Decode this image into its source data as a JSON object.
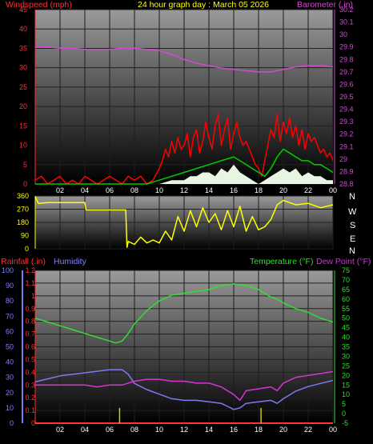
{
  "title": "24 hour graph day : March 05 2026",
  "colors": {
    "wind_speed": "#ff0000",
    "wind_avg": "#00cc00",
    "gust_fill": "#e8f5e0",
    "barometer": "#d24ad2",
    "direction": "#ffff00",
    "rainfall": "#ff3333",
    "humidity": "#7b7bf2",
    "temperature": "#33dd33",
    "dew_point": "#d633d6",
    "rain_bars": "#cccc00"
  },
  "compass": [
    "N",
    "W",
    "S",
    "E",
    "N"
  ],
  "x_ticks": [
    "02",
    "04",
    "06",
    "08",
    "10",
    "12",
    "14",
    "16",
    "18",
    "20",
    "22",
    "00"
  ],
  "chart_data": [
    {
      "id": "wind",
      "type": "line",
      "title_left": "Windspeed (mph)",
      "title_right": "Barometer (.in)",
      "y_left": {
        "lim": [
          0,
          45
        ],
        "ticks": [
          0,
          5,
          10,
          15,
          20,
          25,
          30,
          35,
          40,
          45
        ]
      },
      "y_right": {
        "lim": [
          28.8,
          30.2
        ],
        "ticks": [
          "28.8",
          "28.9",
          "29",
          "29.1",
          "29.2",
          "29.3",
          "29.4",
          "29.5",
          "29.6",
          "29.7",
          "29.8",
          "29.9",
          "30",
          "30.1",
          "30.2"
        ]
      },
      "x_hours_range": [
        0,
        24
      ],
      "series": [
        {
          "key": "barometer",
          "axis": "right",
          "x": [
            0,
            1,
            2,
            3,
            4,
            5,
            6,
            7,
            8,
            9,
            10,
            11,
            12,
            13,
            14,
            15,
            16,
            17,
            18,
            19,
            20,
            21,
            22,
            23,
            24
          ],
          "y": [
            29.9,
            29.9,
            29.89,
            29.89,
            29.88,
            29.88,
            29.88,
            29.89,
            29.89,
            29.88,
            29.87,
            29.84,
            29.8,
            29.77,
            29.75,
            29.73,
            29.72,
            29.71,
            29.7,
            29.7,
            29.72,
            29.74,
            29.75,
            29.75,
            29.74
          ]
        },
        {
          "key": "wind_speed",
          "axis": "left",
          "x": [
            0,
            0.5,
            1,
            1.5,
            2,
            2.5,
            3,
            3.5,
            4,
            4.5,
            5,
            5.5,
            6,
            6.5,
            7,
            7.5,
            8,
            8.5,
            9,
            9.5,
            10,
            10.25,
            10.5,
            10.75,
            11,
            11.25,
            11.5,
            11.75,
            12,
            12.25,
            12.5,
            12.75,
            13,
            13.25,
            13.5,
            13.75,
            14,
            14.25,
            14.5,
            14.75,
            15,
            15.25,
            15.5,
            15.75,
            16,
            16.25,
            16.5,
            16.75,
            17,
            17.25,
            17.5,
            17.75,
            18,
            18.25,
            18.5,
            18.75,
            19,
            19.25,
            19.5,
            19.75,
            20,
            20.25,
            20.5,
            20.75,
            21,
            21.25,
            21.5,
            21.75,
            22,
            22.25,
            22.5,
            22.75,
            23,
            23.25,
            23.5,
            23.75,
            24
          ],
          "y": [
            1,
            2,
            0,
            1,
            2,
            0,
            1,
            0,
            2,
            1,
            0,
            1,
            2,
            1,
            0,
            2,
            1,
            2,
            0,
            1,
            4,
            6,
            9,
            7,
            11,
            8,
            12,
            9,
            10,
            13,
            7,
            12,
            14,
            8,
            11,
            16,
            12,
            9,
            15,
            18,
            10,
            14,
            17,
            9,
            13,
            16,
            12,
            10,
            11,
            9,
            7,
            5,
            4,
            2,
            6,
            10,
            14,
            12,
            18,
            11,
            16,
            13,
            17,
            12,
            15,
            10,
            14,
            9,
            13,
            11,
            12,
            10,
            8,
            9,
            7,
            8,
            6
          ]
        },
        {
          "key": "wind_avg",
          "axis": "left",
          "x": [
            0,
            2,
            4,
            6,
            8,
            9,
            10,
            11,
            12,
            13,
            14,
            15,
            16,
            16.5,
            17,
            18,
            18.5,
            19,
            19.5,
            20,
            20.5,
            21,
            21.5,
            22,
            22.5,
            23,
            23.5,
            24
          ],
          "y": [
            0,
            0,
            0,
            0,
            0,
            0,
            1,
            2,
            3,
            4,
            5,
            6,
            7,
            6,
            5,
            3,
            2,
            4,
            7,
            9,
            8,
            7,
            6,
            6,
            5,
            5,
            4,
            3
          ]
        },
        {
          "key": "wind_gust",
          "axis": "left",
          "x": [
            10,
            11,
            12,
            12.5,
            13,
            13.5,
            14,
            14.5,
            15,
            15.5,
            16,
            16.5,
            17,
            17.5,
            18,
            18.5,
            19,
            19.5,
            20,
            20.5,
            21,
            21.5,
            22,
            22.5,
            23,
            23.5,
            24
          ],
          "y": [
            0,
            1,
            1,
            2,
            2,
            3,
            3,
            2,
            4,
            3,
            5,
            3,
            2,
            1,
            0,
            1,
            2,
            3,
            4,
            3,
            4,
            2,
            3,
            2,
            2,
            1,
            1
          ]
        }
      ]
    },
    {
      "id": "direction",
      "type": "line",
      "y_left": {
        "lim": [
          0,
          360
        ],
        "ticks": [
          0,
          90,
          180,
          270,
          360
        ]
      },
      "series": [
        {
          "key": "direction",
          "x": [
            0,
            0.25,
            1,
            2,
            3,
            4,
            4.1,
            5,
            6,
            7,
            7.3,
            7.4,
            7.5,
            8,
            8.5,
            9,
            9.5,
            10,
            10.5,
            11,
            11.5,
            12,
            12.5,
            13,
            13.5,
            14,
            14.5,
            15,
            15.5,
            16,
            16.5,
            17,
            17.5,
            18,
            18.5,
            19,
            19.5,
            20,
            21,
            22,
            23,
            24
          ],
          "y": [
            355,
            310,
            315,
            315,
            315,
            315,
            265,
            265,
            265,
            265,
            265,
            10,
            50,
            30,
            80,
            40,
            60,
            40,
            120,
            60,
            220,
            120,
            260,
            150,
            280,
            180,
            240,
            130,
            260,
            150,
            290,
            120,
            220,
            130,
            150,
            200,
            300,
            330,
            300,
            310,
            280,
            300
          ]
        }
      ]
    },
    {
      "id": "weather",
      "type": "line",
      "title_left_1": "Rainfall (.in)",
      "title_left_2": "Humidity",
      "title_right_1": "Temperature (°F)",
      "title_right_2": "Dew Point (°F)",
      "y_humidity": {
        "lim": [
          0,
          100
        ],
        "ticks": [
          0,
          10,
          20,
          30,
          40,
          50,
          60,
          70,
          80,
          90,
          100
        ]
      },
      "y_rain": {
        "lim": [
          0,
          1.2
        ],
        "ticks": [
          "0",
          "0.1",
          "0.2",
          "0.3",
          "0.4",
          "0.5",
          "0.6",
          "0.7",
          "0.8",
          "0.9",
          "1",
          "1.1",
          "1.2"
        ]
      },
      "y_temp": {
        "lim": [
          -5,
          75
        ],
        "ticks": [
          -5,
          0,
          5,
          10,
          15,
          20,
          25,
          30,
          35,
          40,
          45,
          50,
          55,
          60,
          65,
          70,
          75
        ]
      },
      "series": [
        {
          "key": "temperature",
          "axis": "temp",
          "x": [
            0,
            1,
            2,
            3,
            4,
            5,
            6,
            6.5,
            7,
            7.5,
            8,
            9,
            10,
            11,
            12,
            13,
            14,
            15,
            16,
            17,
            18,
            18.5,
            19,
            19.5,
            20,
            21,
            22,
            23,
            24
          ],
          "y": [
            50,
            48,
            46,
            44,
            42,
            40,
            38,
            37,
            38,
            42,
            47,
            54,
            59,
            62,
            63,
            64,
            65,
            67,
            68,
            67,
            65,
            63,
            61,
            60,
            58,
            55,
            53,
            50,
            48
          ]
        },
        {
          "key": "dew_point",
          "axis": "temp",
          "x": [
            0,
            1,
            2,
            3,
            4,
            5,
            6,
            7,
            8,
            9,
            10,
            11,
            12,
            13,
            14,
            15,
            16,
            16.5,
            17,
            18,
            19,
            19.5,
            20,
            21,
            22,
            23,
            24
          ],
          "y": [
            15,
            15,
            15,
            15,
            15,
            14,
            15,
            15,
            17,
            18,
            18,
            17,
            17,
            16,
            16,
            14,
            10,
            7,
            12,
            13,
            14,
            12,
            16,
            19,
            20,
            21,
            22
          ]
        },
        {
          "key": "humidity",
          "axis": "humidity",
          "x": [
            0,
            1,
            2,
            3,
            4,
            5,
            6,
            7,
            7.5,
            8,
            9,
            10,
            11,
            12,
            13,
            14,
            15,
            15.5,
            16,
            16.5,
            17,
            18,
            19,
            19.5,
            20,
            21,
            22,
            23,
            24
          ],
          "y": [
            27,
            29,
            31,
            32,
            33,
            34,
            35,
            35,
            32,
            26,
            22,
            19,
            16,
            15,
            15,
            14,
            13,
            11,
            9,
            10,
            13,
            14,
            15,
            13,
            16,
            21,
            24,
            26,
            28
          ]
        },
        {
          "key": "rainfall",
          "axis": "rain",
          "x": [
            0,
            24
          ],
          "y": [
            0,
            0
          ]
        },
        {
          "key": "rain_bars",
          "axis": "rain",
          "x": [
            6.8,
            18.2
          ],
          "y": [
            0.12,
            0.12
          ]
        }
      ]
    }
  ]
}
